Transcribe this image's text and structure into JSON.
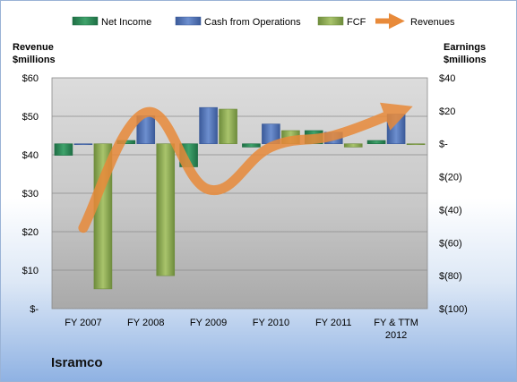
{
  "company": "Isramco",
  "colors": {
    "net_income": "#2e8b57",
    "cash_from_operations": "#4a6fb3",
    "fcf": "#8cac52",
    "revenues": "#e88a3a"
  },
  "chart_data": {
    "type": "bar",
    "categories": [
      "FY 2007",
      "FY 2008",
      "FY 2009",
      "FY 2010",
      "FY 2011",
      "FY & TTM\n2012"
    ],
    "series": [
      {
        "name": "Net Income",
        "axis": "right",
        "values": [
          -7,
          2,
          -14,
          -2,
          8,
          2
        ]
      },
      {
        "name": "Cash from Operations",
        "axis": "right",
        "values": [
          0,
          17,
          22,
          12,
          7,
          18
        ]
      },
      {
        "name": "FCF",
        "axis": "right",
        "values": [
          -88,
          -80,
          21,
          8,
          -2,
          0
        ]
      },
      {
        "name": "Revenues",
        "axis": "left",
        "type": "line",
        "values": [
          21,
          51,
          31,
          42,
          45,
          51
        ]
      }
    ],
    "left_axis": {
      "label": [
        "Revenue",
        "$millions"
      ],
      "ylim": [
        0,
        60
      ],
      "ticks": [
        0,
        10,
        20,
        30,
        40,
        50,
        60
      ],
      "tick_labels": [
        "$-",
        "$10",
        "$20",
        "$30",
        "$40",
        "$50",
        "$60"
      ]
    },
    "right_axis": {
      "label": [
        "Earnings",
        "$millions"
      ],
      "ylim": [
        -100,
        40
      ],
      "ticks": [
        -100,
        -80,
        -60,
        -40,
        -20,
        0,
        20,
        40
      ],
      "tick_labels": [
        "$(100)",
        "$(80)",
        "$(60)",
        "$(40)",
        "$(20)",
        "$-",
        "$20",
        "$40"
      ]
    },
    "grid": true,
    "legend": "top"
  }
}
